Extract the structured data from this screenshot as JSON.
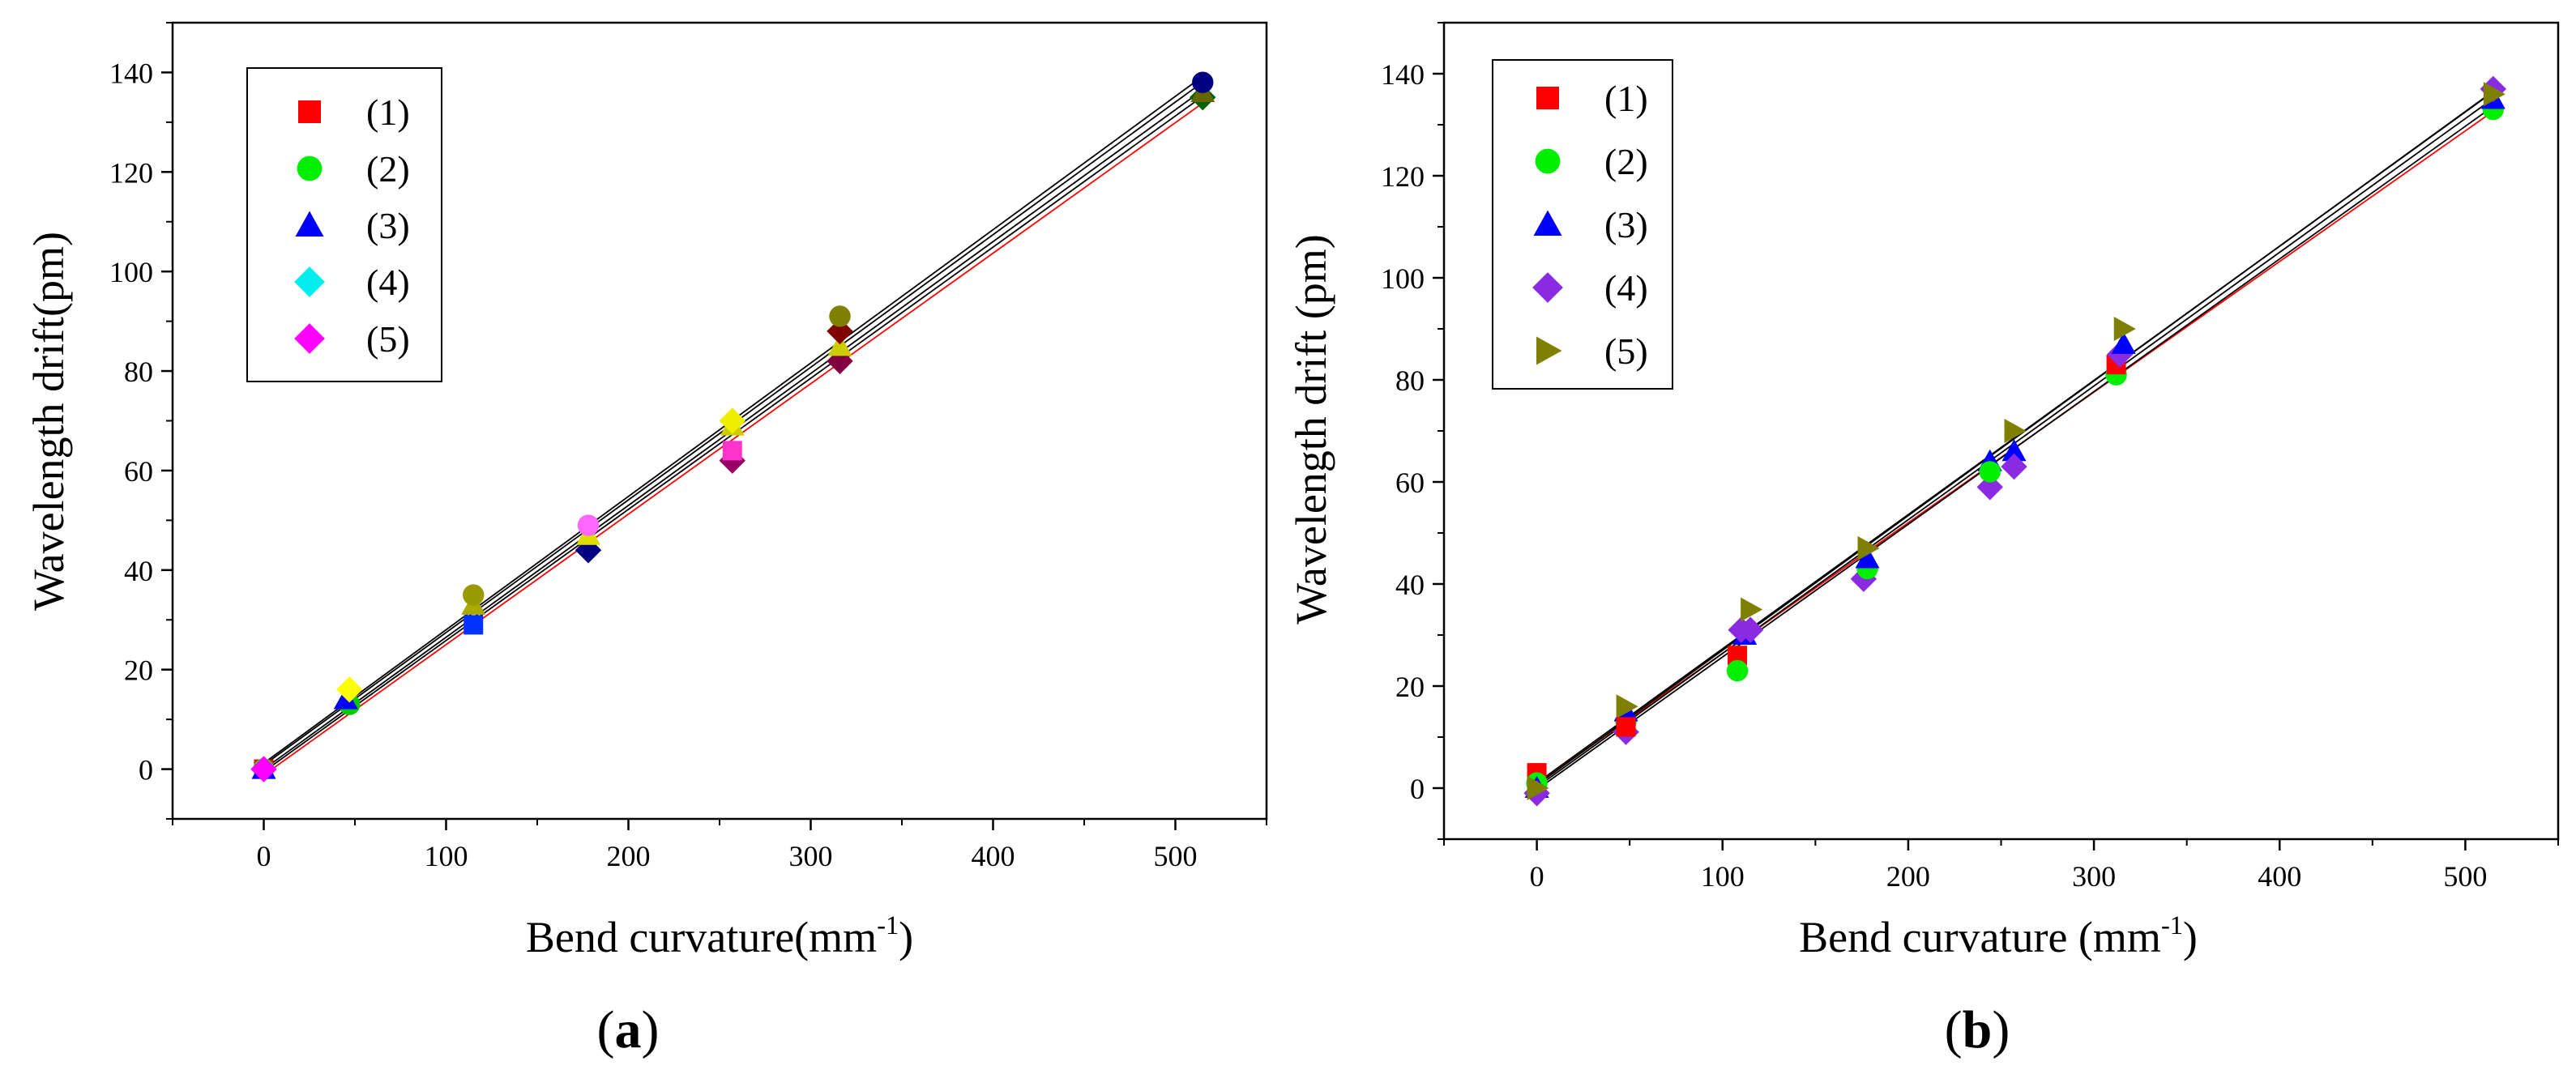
{
  "chart_data": [
    {
      "type": "scatter",
      "panel": "(a)",
      "panel_letter": "a",
      "xlabel_main": "Bend curvature(mm",
      "xlabel_sup": "-1",
      "xlabel_end": ")",
      "ylabel": "Wavelength drift(pm)",
      "xlim": [
        -50,
        550
      ],
      "ylim": [
        -10,
        150
      ],
      "xticks": [
        0,
        100,
        200,
        300,
        400,
        500
      ],
      "yticks": [
        0,
        20,
        40,
        60,
        80,
        100,
        120,
        140
      ],
      "legend_position": "top-left",
      "legend": [
        {
          "label": "(1)",
          "marker": "square",
          "color": "#ff0000"
        },
        {
          "label": "(2)",
          "marker": "circle",
          "color": "#00ee00"
        },
        {
          "label": "(3)",
          "marker": "triangle",
          "color": "#0000ff"
        },
        {
          "label": "(4)",
          "marker": "diamond",
          "color": "#00eeee"
        },
        {
          "label": "(5)",
          "marker": "diamond",
          "color": "#ff00ff"
        }
      ],
      "points": [
        {
          "x": 0,
          "y": 0,
          "marker": "square",
          "color": "#ff0000"
        },
        {
          "x": 0,
          "y": 0,
          "marker": "circle",
          "color": "#00ee00"
        },
        {
          "x": 0,
          "y": 0,
          "marker": "triangle",
          "color": "#0000ff"
        },
        {
          "x": 0,
          "y": 0,
          "marker": "diamond",
          "color": "#00eeee"
        },
        {
          "x": 0,
          "y": 0,
          "marker": "diamond",
          "color": "#ff00ff"
        },
        {
          "x": 47,
          "y": 13,
          "marker": "circle",
          "color": "#00cc00"
        },
        {
          "x": 45,
          "y": 14,
          "marker": "triangle",
          "color": "#0000ff"
        },
        {
          "x": 47,
          "y": 16,
          "marker": "diamond",
          "color": "#ffff00"
        },
        {
          "x": 115,
          "y": 29,
          "marker": "square",
          "color": "#0033ff"
        },
        {
          "x": 115,
          "y": 33,
          "marker": "triangle",
          "color": "#aaaa00"
        },
        {
          "x": 115,
          "y": 35,
          "marker": "circle",
          "color": "#999900"
        },
        {
          "x": 178,
          "y": 44,
          "marker": "diamond",
          "color": "#000080"
        },
        {
          "x": 178,
          "y": 47,
          "marker": "triangle",
          "color": "#dddd00"
        },
        {
          "x": 178,
          "y": 49,
          "marker": "circle",
          "color": "#ff66ff"
        },
        {
          "x": 257,
          "y": 62,
          "marker": "diamond",
          "color": "#990066"
        },
        {
          "x": 257,
          "y": 64,
          "marker": "square",
          "color": "#ff33cc"
        },
        {
          "x": 257,
          "y": 69,
          "marker": "triangle",
          "color": "#cccc00"
        },
        {
          "x": 257,
          "y": 70,
          "marker": "diamond",
          "color": "#eeee00"
        },
        {
          "x": 316,
          "y": 82,
          "marker": "diamond",
          "color": "#800040"
        },
        {
          "x": 316,
          "y": 85,
          "marker": "triangle",
          "color": "#cccc00"
        },
        {
          "x": 316,
          "y": 88,
          "marker": "diamond",
          "color": "#800000"
        },
        {
          "x": 316,
          "y": 91,
          "marker": "circle",
          "color": "#808000"
        },
        {
          "x": 515,
          "y": 135,
          "marker": "diamond",
          "color": "#006400"
        },
        {
          "x": 515,
          "y": 136,
          "marker": "triangle",
          "color": "#666600"
        },
        {
          "x": 515,
          "y": 138,
          "marker": "circle",
          "color": "#000080"
        }
      ],
      "fits": [
        {
          "intercept": -1.2,
          "slope": 0.2622,
          "color": "#ff0000"
        },
        {
          "intercept": -0.5,
          "slope": 0.2635,
          "color": "#000000"
        },
        {
          "intercept": 0.0,
          "slope": 0.265,
          "color": "#000000"
        },
        {
          "intercept": 0.8,
          "slope": 0.2665,
          "color": "#000000"
        },
        {
          "intercept": 1.2,
          "slope": 0.268,
          "color": "#000000"
        }
      ]
    },
    {
      "type": "scatter",
      "panel": "(b)",
      "panel_letter": "b",
      "xlabel_main": "Bend curvature (mm",
      "xlabel_sup": "-1",
      "xlabel_end": ")",
      "ylabel": "Wavelength drift (pm)",
      "xlim": [
        -50,
        550
      ],
      "ylim": [
        -10,
        150
      ],
      "xticks": [
        0,
        100,
        200,
        300,
        400,
        500
      ],
      "yticks": [
        0,
        20,
        40,
        60,
        80,
        100,
        120,
        140
      ],
      "legend_position": "top-left",
      "legend": [
        {
          "label": "(1)",
          "marker": "square",
          "color": "#ff0000"
        },
        {
          "label": "(2)",
          "marker": "circle",
          "color": "#00ee00"
        },
        {
          "label": "(3)",
          "marker": "triangle",
          "color": "#0000ff"
        },
        {
          "label": "(4)",
          "marker": "diamond",
          "color": "#8a2be2"
        },
        {
          "label": "(5)",
          "marker": "triangle-right",
          "color": "#808000"
        }
      ],
      "points": [
        {
          "x": 0,
          "y": 3,
          "marker": "square",
          "color": "#ff0000"
        },
        {
          "x": 0,
          "y": 1,
          "marker": "circle",
          "color": "#00ee00"
        },
        {
          "x": 0,
          "y": 0,
          "marker": "triangle",
          "color": "#0000ff"
        },
        {
          "x": 0,
          "y": -1,
          "marker": "diamond",
          "color": "#8a2be2"
        },
        {
          "x": 0,
          "y": 0,
          "marker": "triangle-right",
          "color": "#808000"
        },
        {
          "x": 48,
          "y": 13,
          "marker": "circle",
          "color": "#00ee00"
        },
        {
          "x": 48,
          "y": 15,
          "marker": "triangle",
          "color": "#0000ff"
        },
        {
          "x": 48,
          "y": 11,
          "marker": "diamond",
          "color": "#8a2be2"
        },
        {
          "x": 48,
          "y": 16,
          "marker": "triangle-right",
          "color": "#808000"
        },
        {
          "x": 48,
          "y": 12,
          "marker": "square",
          "color": "#ff0000"
        },
        {
          "x": 108,
          "y": 26,
          "marker": "square",
          "color": "#ff0000"
        },
        {
          "x": 108,
          "y": 23,
          "marker": "circle",
          "color": "#00ee00"
        },
        {
          "x": 112,
          "y": 30,
          "marker": "triangle",
          "color": "#0000ff"
        },
        {
          "x": 110,
          "y": 31,
          "marker": "diamond",
          "color": "#8a2be2"
        },
        {
          "x": 115,
          "y": 35,
          "marker": "triangle-right",
          "color": "#808000"
        },
        {
          "x": 115,
          "y": 31,
          "marker": "diamond",
          "color": "#8a2be2"
        },
        {
          "x": 176,
          "y": 41,
          "marker": "diamond",
          "color": "#8a2be2"
        },
        {
          "x": 178,
          "y": 43,
          "marker": "circle",
          "color": "#00ee00"
        },
        {
          "x": 178,
          "y": 45,
          "marker": "triangle",
          "color": "#0000ff"
        },
        {
          "x": 178,
          "y": 47,
          "marker": "triangle-right",
          "color": "#808000"
        },
        {
          "x": 244,
          "y": 64,
          "marker": "triangle",
          "color": "#0000ff"
        },
        {
          "x": 244,
          "y": 59,
          "marker": "diamond",
          "color": "#8a2be2"
        },
        {
          "x": 244,
          "y": 62,
          "marker": "circle",
          "color": "#00ee00"
        },
        {
          "x": 257,
          "y": 66,
          "marker": "triangle",
          "color": "#0000ff"
        },
        {
          "x": 257,
          "y": 63,
          "marker": "diamond",
          "color": "#8a2be2"
        },
        {
          "x": 257,
          "y": 70,
          "marker": "triangle-right",
          "color": "#808000"
        },
        {
          "x": 312,
          "y": 81,
          "marker": "circle",
          "color": "#00ee00"
        },
        {
          "x": 312,
          "y": 83,
          "marker": "square",
          "color": "#ff0000"
        },
        {
          "x": 314,
          "y": 85,
          "marker": "diamond",
          "color": "#8a2be2"
        },
        {
          "x": 316,
          "y": 87,
          "marker": "triangle",
          "color": "#0000ff"
        },
        {
          "x": 316,
          "y": 90,
          "marker": "triangle-right",
          "color": "#808000"
        },
        {
          "x": 515,
          "y": 133,
          "marker": "circle",
          "color": "#00ee00"
        },
        {
          "x": 515,
          "y": 135,
          "marker": "triangle",
          "color": "#0000ff"
        },
        {
          "x": 515,
          "y": 137,
          "marker": "diamond",
          "color": "#8a2be2"
        },
        {
          "x": 515,
          "y": 136,
          "marker": "triangle-right",
          "color": "#808000"
        }
      ],
      "fits": [
        {
          "intercept": 0.8,
          "slope": 0.256,
          "color": "#ff0000"
        },
        {
          "intercept": -0.3,
          "slope": 0.26,
          "color": "#000000"
        },
        {
          "intercept": 0.2,
          "slope": 0.262,
          "color": "#000000"
        },
        {
          "intercept": 0.6,
          "slope": 0.264,
          "color": "#000000"
        },
        {
          "intercept": 1.0,
          "slope": 0.263,
          "color": "#000000"
        }
      ]
    }
  ]
}
